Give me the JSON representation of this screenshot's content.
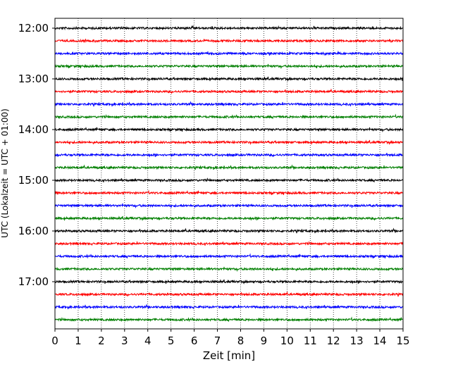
{
  "chart_data": {
    "type": "line",
    "title": "",
    "xlabel": "Zeit  [min]",
    "ylabel": "UTC (Lokalzeit = UTC + 01:00)",
    "xlim": [
      0,
      15
    ],
    "x_ticks": [
      "0",
      "1",
      "2",
      "3",
      "4",
      "5",
      "6",
      "7",
      "8",
      "9",
      "10",
      "11",
      "12",
      "13",
      "14",
      "15"
    ],
    "y_ticks": [
      "12:00",
      "13:00",
      "14:00",
      "15:00",
      "16:00",
      "17:00"
    ],
    "grid": "vertical-dotted",
    "trace_colors": [
      "#000000",
      "#ff0000",
      "#0000ff",
      "#007f00"
    ],
    "traces": [
      "12:00",
      "12:15",
      "12:30",
      "12:45",
      "13:00",
      "13:15",
      "13:30",
      "13:45",
      "14:00",
      "14:15",
      "14:30",
      "14:45",
      "15:00",
      "15:15",
      "15:30",
      "15:45",
      "16:00",
      "16:15",
      "16:30",
      "16:45",
      "17:00",
      "17:15",
      "17:30",
      "17:45"
    ]
  }
}
